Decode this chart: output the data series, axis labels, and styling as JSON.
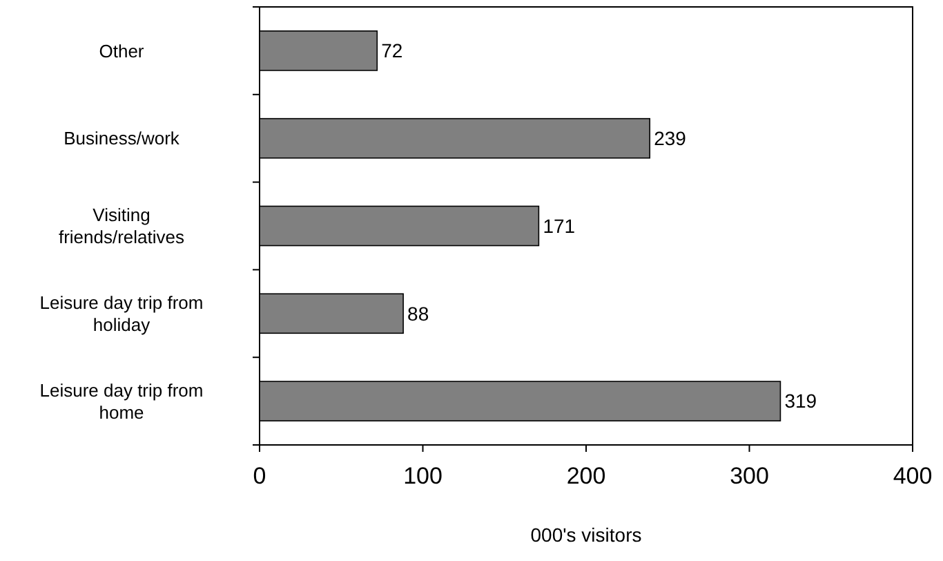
{
  "chart_data": {
    "type": "bar",
    "orientation": "horizontal",
    "categories": [
      "Other",
      "Business/work",
      "Visiting friends/relatives",
      "Leisure day trip from holiday",
      "Leisure day trip from home"
    ],
    "values": [
      72,
      239,
      171,
      88,
      319
    ],
    "color": "#808080",
    "data_labels": true,
    "xlim": [
      0,
      400
    ],
    "xticks": [
      0,
      100,
      200,
      300,
      400
    ],
    "xlabel": "000's visitors",
    "grid": false
  }
}
